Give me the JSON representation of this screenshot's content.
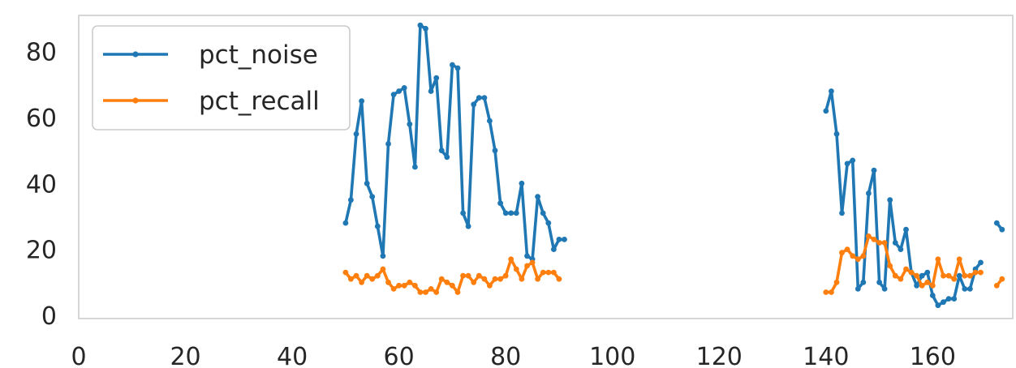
{
  "chart_data": {
    "type": "line",
    "title": "",
    "xlabel": "",
    "ylabel": "",
    "xlim": [
      0,
      175
    ],
    "ylim": [
      -1,
      91
    ],
    "x_ticks": [
      0,
      20,
      40,
      60,
      80,
      100,
      120,
      140,
      160
    ],
    "y_ticks": [
      0,
      20,
      40,
      60,
      80
    ],
    "grid": false,
    "legend_position": "top-left",
    "series": [
      {
        "name": "pct_noise",
        "color": "#1f77b4",
        "segments": [
          [
            [
              50,
              28
            ],
            [
              51,
              35
            ],
            [
              52,
              55
            ],
            [
              53,
              65
            ],
            [
              54,
              40
            ],
            [
              55,
              36
            ],
            [
              56,
              27
            ],
            [
              57,
              18
            ],
            [
              58,
              52
            ],
            [
              59,
              67
            ],
            [
              60,
              68
            ],
            [
              61,
              69
            ],
            [
              62,
              58
            ],
            [
              63,
              45
            ],
            [
              64,
              88
            ],
            [
              65,
              87
            ],
            [
              66,
              68
            ],
            [
              67,
              72
            ],
            [
              68,
              50
            ],
            [
              69,
              48
            ],
            [
              70,
              76
            ],
            [
              71,
              75
            ],
            [
              72,
              31
            ],
            [
              73,
              27
            ],
            [
              74,
              64
            ],
            [
              75,
              66
            ],
            [
              76,
              66
            ],
            [
              77,
              59
            ],
            [
              78,
              50
            ],
            [
              79,
              34
            ],
            [
              80,
              31
            ],
            [
              81,
              31
            ],
            [
              82,
              31
            ],
            [
              83,
              40
            ],
            [
              84,
              18
            ],
            [
              85,
              17
            ],
            [
              86,
              36
            ],
            [
              87,
              31
            ],
            [
              88,
              28
            ],
            [
              89,
              20
            ],
            [
              90,
              23
            ],
            [
              91,
              23
            ]
          ],
          [
            [
              140,
              62
            ],
            [
              141,
              68
            ],
            [
              142,
              55
            ],
            [
              143,
              31
            ],
            [
              144,
              46
            ],
            [
              145,
              47
            ],
            [
              146,
              8
            ],
            [
              147,
              10
            ],
            [
              148,
              37
            ],
            [
              149,
              44
            ],
            [
              150,
              10
            ],
            [
              151,
              8
            ],
            [
              152,
              35
            ],
            [
              153,
              22
            ],
            [
              154,
              20
            ],
            [
              155,
              26
            ],
            [
              156,
              13
            ],
            [
              157,
              9
            ],
            [
              158,
              12
            ],
            [
              159,
              13
            ],
            [
              160,
              6
            ],
            [
              161,
              3
            ],
            [
              162,
              4
            ],
            [
              163,
              5
            ],
            [
              164,
              5
            ],
            [
              165,
              12
            ],
            [
              166,
              8
            ],
            [
              167,
              8
            ],
            [
              168,
              14
            ],
            [
              169,
              16
            ]
          ],
          [
            [
              172,
              28
            ],
            [
              173,
              26
            ]
          ]
        ]
      },
      {
        "name": "pct_recall",
        "color": "#ff7f0e",
        "segments": [
          [
            [
              50,
              13
            ],
            [
              51,
              11
            ],
            [
              52,
              12
            ],
            [
              53,
              10
            ],
            [
              54,
              12
            ],
            [
              55,
              11
            ],
            [
              56,
              12
            ],
            [
              57,
              14
            ],
            [
              58,
              10
            ],
            [
              59,
              8
            ],
            [
              60,
              9
            ],
            [
              61,
              9
            ],
            [
              62,
              10
            ],
            [
              63,
              9
            ],
            [
              64,
              7
            ],
            [
              65,
              7
            ],
            [
              66,
              8
            ],
            [
              67,
              7
            ],
            [
              68,
              11
            ],
            [
              69,
              10
            ],
            [
              70,
              9
            ],
            [
              71,
              7
            ],
            [
              72,
              12
            ],
            [
              73,
              12
            ],
            [
              74,
              10
            ],
            [
              75,
              12
            ],
            [
              76,
              11
            ],
            [
              77,
              9
            ],
            [
              78,
              11
            ],
            [
              79,
              11
            ],
            [
              80,
              12
            ],
            [
              81,
              17
            ],
            [
              82,
              14
            ],
            [
              83,
              11
            ],
            [
              84,
              15
            ],
            [
              85,
              16
            ],
            [
              86,
              11
            ],
            [
              87,
              13
            ],
            [
              88,
              13
            ],
            [
              89,
              13
            ],
            [
              90,
              11
            ]
          ],
          [
            [
              140,
              7
            ],
            [
              141,
              7
            ],
            [
              142,
              10
            ],
            [
              143,
              19
            ],
            [
              144,
              20
            ],
            [
              145,
              18
            ],
            [
              146,
              17
            ],
            [
              147,
              18
            ],
            [
              148,
              24
            ],
            [
              149,
              23
            ],
            [
              150,
              22
            ],
            [
              151,
              22
            ],
            [
              152,
              15
            ],
            [
              153,
              12
            ],
            [
              154,
              11
            ],
            [
              155,
              14
            ],
            [
              156,
              13
            ],
            [
              157,
              12
            ],
            [
              158,
              9
            ],
            [
              159,
              10
            ],
            [
              160,
              9
            ],
            [
              161,
              17
            ],
            [
              162,
              12
            ],
            [
              163,
              12
            ],
            [
              164,
              11
            ],
            [
              165,
              17
            ],
            [
              166,
              12
            ],
            [
              167,
              12
            ],
            [
              168,
              13
            ],
            [
              169,
              13
            ]
          ],
          [
            [
              172,
              9
            ],
            [
              173,
              11
            ]
          ]
        ]
      }
    ]
  }
}
